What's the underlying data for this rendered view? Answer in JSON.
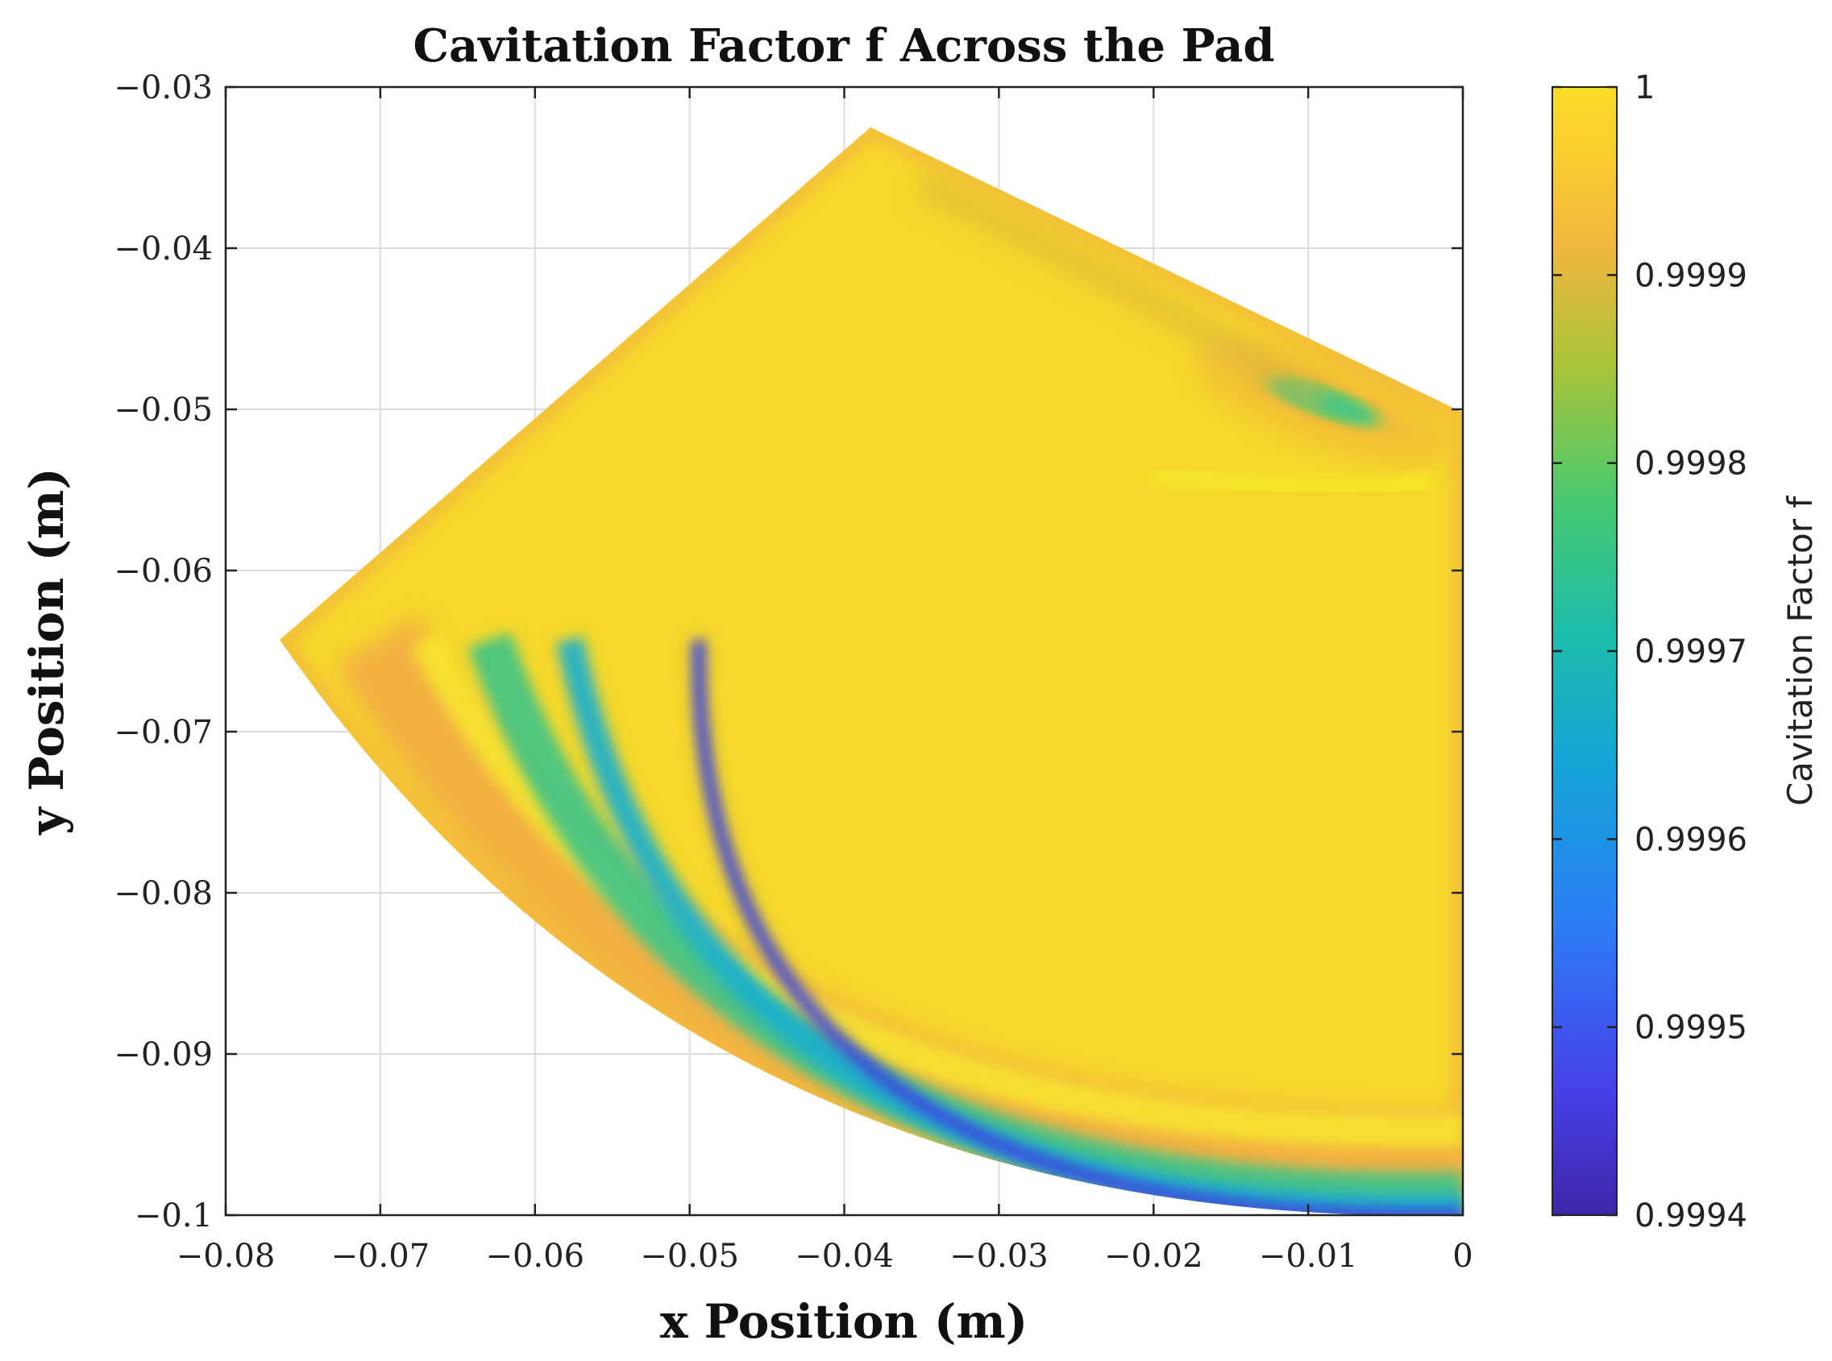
{
  "chart_data": {
    "type": "heatmap",
    "title": "Cavitation Factor f Across the Pad",
    "xlabel": "x Position (m)",
    "ylabel": "y Position (m)",
    "xlim": [
      -0.08,
      0
    ],
    "ylim": [
      -0.1,
      -0.03
    ],
    "x_ticks": [
      -0.08,
      -0.07,
      -0.06,
      -0.05,
      -0.04,
      -0.03,
      -0.02,
      -0.01,
      0
    ],
    "y_ticks": [
      -0.03,
      -0.04,
      -0.05,
      -0.06,
      -0.07,
      -0.08,
      -0.09,
      -0.1
    ],
    "x_tick_labels": [
      "−0.08",
      "−0.07",
      "−0.06",
      "−0.05",
      "−0.04",
      "−0.03",
      "−0.02",
      "−0.01",
      "0"
    ],
    "y_tick_labels": [
      "−0.03",
      "−0.04",
      "−0.05",
      "−0.06",
      "−0.07",
      "−0.08",
      "−0.09",
      "−0.1"
    ],
    "grid": true,
    "colorbar": {
      "label": "Cavitation Factor f",
      "clim": [
        0.9994,
        1.0
      ],
      "ticks": [
        1,
        0.9999,
        0.9998,
        0.9997,
        0.9996,
        0.9995,
        0.9994
      ],
      "tick_labels": [
        "1",
        "0.9999",
        "0.9998",
        "0.9997",
        "0.9996",
        "0.9995",
        "0.9994"
      ],
      "colormap": "parula",
      "colormap_stops": [
        "#3E26A8",
        "#4740E8",
        "#2C7EF6",
        "#14A5D7",
        "#1EBDA8",
        "#46C971",
        "#A7C439",
        "#F2B73E",
        "#FACE2F",
        "#F9DC27"
      ]
    },
    "pad_region": {
      "outline_vertices": [
        [
          -0.0765,
          -0.0643
        ],
        [
          -0.0383,
          -0.0325
        ],
        [
          0.0,
          -0.0502
        ],
        [
          0.0,
          -0.1
        ],
        [
          -0.0765,
          -0.0643
        ]
      ],
      "base_value": 1.0
    },
    "low_value_zones": [
      {
        "description": "leading edge band near outer arc",
        "x_range": [
          -0.06,
          0.0
        ],
        "y_range": [
          -0.1,
          -0.085
        ],
        "min_value": 0.99945
      },
      {
        "description": "trailing corner pocket",
        "x": -0.009,
        "y": -0.0495,
        "min_value": 0.99978
      }
    ]
  }
}
